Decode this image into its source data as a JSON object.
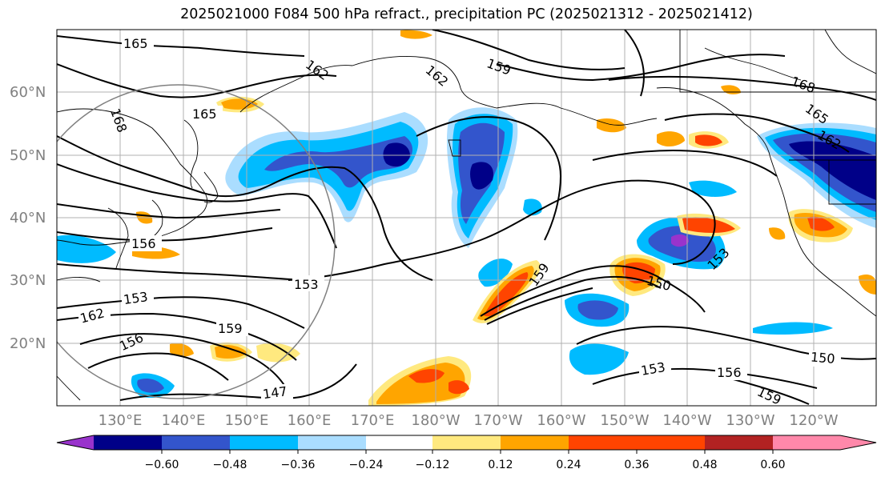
{
  "title": "2025021000 F084 500 hPa refract., precipitation PC (2025021312 - 2025021412)",
  "map": {
    "lat_labels": [
      "60°N",
      "50°N",
      "40°N",
      "30°N",
      "20°N"
    ],
    "lon_labels": [
      "130°E",
      "140°E",
      "150°E",
      "160°E",
      "170°E",
      "180°W",
      "170°W",
      "160°W",
      "150°W",
      "140°W",
      "130°W",
      "120°W"
    ],
    "contour_labels": [
      "165",
      "162",
      "159",
      "162",
      "168",
      "165",
      "168",
      "165",
      "162",
      "156",
      "153",
      "153",
      "162",
      "156",
      "159",
      "147",
      "159",
      "150",
      "153",
      "150",
      "153",
      "156",
      "159"
    ]
  },
  "colorbar": {
    "tick_labels": [
      "−0.60",
      "−0.48",
      "−0.36",
      "−0.24",
      "−0.12",
      "0.12",
      "0.24",
      "0.36",
      "0.48",
      "0.60"
    ],
    "colors": [
      "#9933cc",
      "#000088",
      "#3355cc",
      "#00bbff",
      "#aaddff",
      "#ffffff",
      "#ffe97f",
      "#ffa500",
      "#ff4400",
      "#b22222",
      "#ff88aa"
    ]
  },
  "colors": {
    "contour": "#000000",
    "coast": "#000000",
    "grid": "#b0b0b0",
    "circle": "#808080"
  }
}
